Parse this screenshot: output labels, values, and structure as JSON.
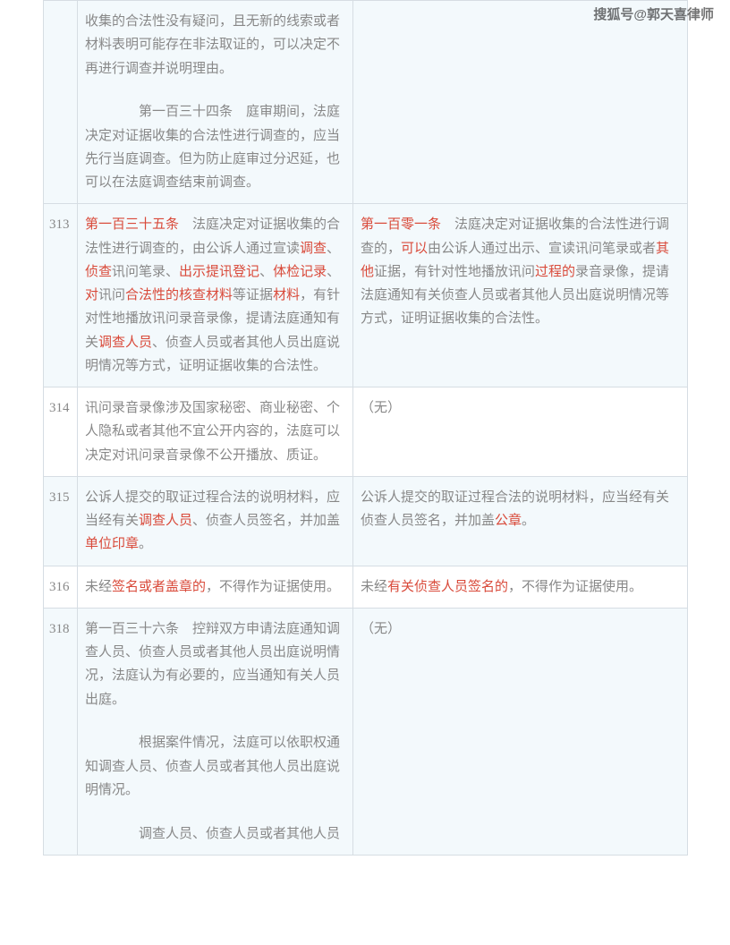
{
  "watermark": "搜狐号@郭天喜律师",
  "rows": [
    {
      "num": "",
      "rowClass": "blue",
      "left": {
        "segments": [
          {
            "t": "收集的合法性没有疑问，且无新的线索或者材料表明可能存在非法取证的，可以决定不再进行调查并说明理由。"
          }
        ],
        "para2": [
          {
            "t": "　　第一百三十四条　庭审期间，法庭决定对证据收集的合法性进行调查的，应当先行当庭调查。但为防止庭审过分迟延，也可以在法庭调查结束前调查。"
          }
        ]
      },
      "right": {
        "segments": []
      }
    },
    {
      "num": "313",
      "rowClass": "blue",
      "left": {
        "segments": [
          {
            "t": "第一百三十五条",
            "hl": true
          },
          {
            "t": "　法庭决定对证据收集的合法性进行调查的，由公诉人通过宣读"
          },
          {
            "t": "调查",
            "hl": true
          },
          {
            "t": "、"
          },
          {
            "t": "侦查",
            "hl": true
          },
          {
            "t": "讯问笔录、"
          },
          {
            "t": "出示",
            "hl": true
          },
          {
            "t": "提讯登记",
            "hl": true
          },
          {
            "t": "、"
          },
          {
            "t": "体检记录",
            "hl": true
          },
          {
            "t": "、"
          },
          {
            "t": "对",
            "hl": true
          },
          {
            "t": "讯问"
          },
          {
            "t": "合法性的核查材料",
            "hl": true
          },
          {
            "t": "等证据"
          },
          {
            "t": "材料",
            "hl": true
          },
          {
            "t": "，有针对性地播放讯问录音录像，提请法庭通知有关"
          },
          {
            "t": "调查人员",
            "hl": true
          },
          {
            "t": "、侦查人员或者其他人员出庭说明情况等方式，证明证据收集的合法性。"
          }
        ]
      },
      "right": {
        "segments": [
          {
            "t": "第一百零一条",
            "hl": true
          },
          {
            "t": "　法庭决定对证据收集的合法性进行调查的，"
          },
          {
            "t": "可以",
            "hl": true
          },
          {
            "t": "由公诉人通过出示、宣读讯问笔录或者"
          },
          {
            "t": "其他",
            "hl": true
          },
          {
            "t": "证据，有针对性地播放讯问"
          },
          {
            "t": "过程的",
            "hl": true
          },
          {
            "t": "录音录像，提请法庭通知有关侦查人员或者其他人员出庭说明情况等方式，证明证据收集的合法性。"
          }
        ]
      }
    },
    {
      "num": "314",
      "rowClass": "white",
      "left": {
        "segments": [
          {
            "t": "讯问录音录像涉及国家秘密、商业秘密、个人隐私或者其他不宜公开内容的，法庭可以决定对讯问录音录像不公开播放、质证。"
          }
        ]
      },
      "right": {
        "segments": [
          {
            "t": "（无）"
          }
        ]
      }
    },
    {
      "num": "315",
      "rowClass": "blue",
      "left": {
        "segments": [
          {
            "t": "公诉人提交的取证过程合法的说明材料，应当经有关"
          },
          {
            "t": "调查人员",
            "hl": true
          },
          {
            "t": "、侦查人员签名，并加盖"
          },
          {
            "t": "单位印章",
            "hl": true
          },
          {
            "t": "。"
          }
        ]
      },
      "right": {
        "segments": [
          {
            "t": "公诉人提交的取证过程合法的说明材料，应当经有关侦查人员签名，并加盖"
          },
          {
            "t": "公章",
            "hl": true
          },
          {
            "t": "。"
          }
        ]
      }
    },
    {
      "num": "316",
      "rowClass": "white",
      "left": {
        "segments": [
          {
            "t": "未经"
          },
          {
            "t": "签名或者盖章的",
            "hl": true
          },
          {
            "t": "，不得作为证据使用。"
          }
        ]
      },
      "right": {
        "segments": [
          {
            "t": "未经"
          },
          {
            "t": "有关侦查人员签名的",
            "hl": true
          },
          {
            "t": "，不得作为证据使用。"
          }
        ]
      }
    },
    {
      "num": "318",
      "rowClass": "blue",
      "left": {
        "segments": [
          {
            "t": "第一百三十六条　控辩双方申请法庭通知调查人员、侦查人员或者其他人员出庭说明情况，法庭认为有必要的，应当通知有关人员出庭。"
          }
        ],
        "para2": [
          {
            "t": "　　根据案件情况，法庭可以依职权通知调查人员、侦查人员或者其他人员出庭说明情况。"
          }
        ],
        "para3": [
          {
            "t": "　　调查人员、侦查人员或者其他人员"
          }
        ]
      },
      "right": {
        "segments": [
          {
            "t": "（无）"
          }
        ]
      }
    }
  ]
}
